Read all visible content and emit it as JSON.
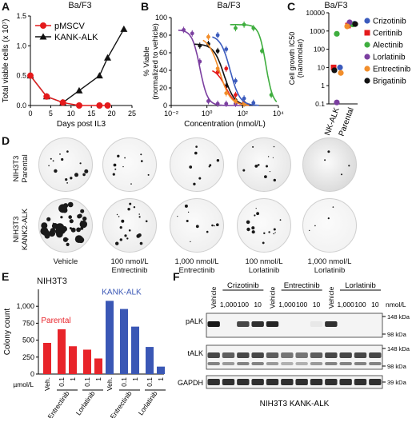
{
  "panel_letters": {
    "a": "A",
    "b": "B",
    "c": "C",
    "d": "D",
    "e": "E",
    "f": "F"
  },
  "titles": {
    "a": "Ba/F3",
    "b": "Ba/F3",
    "c": "Ba/F3",
    "e": "NIH3T3"
  },
  "panel_d": {
    "row_labels": [
      "NIH3T3 Parental",
      "NIH3T3 KANK2-ALK"
    ],
    "column_captions": [
      "Vehicle",
      "100 nmol/L\nEntrectinib",
      "1,000 nmol/L\nEntrectinib",
      "100 nmol/L\nLorlatinib",
      "1,000 nmol/L\nLorlatinib"
    ],
    "dish_tones": [
      [
        "#ececec",
        "#f0f0f0",
        "#eeeeee",
        "#e6e6e6",
        "#d8d8d8"
      ],
      [
        "#e9e9e9",
        "#ebebeb",
        "#eeeeee",
        "#f0f0f0",
        "#f2f2f2"
      ]
    ]
  },
  "panel_f": {
    "groups": [
      "Crizotinib",
      "Entrectinib",
      "Lorlatinib"
    ],
    "lane_labels": [
      "Vehicle",
      "1,000",
      "100",
      "10",
      "Vehicle",
      "1,000",
      "100",
      "10",
      "Vehicle",
      "1,000",
      "100",
      "10"
    ],
    "unit": "nmol/L",
    "rows": [
      "pALK",
      "tALK",
      "GAPDH"
    ],
    "markers": {
      "palk": [
        "148 kDa",
        "98 kDa"
      ],
      "talk": [
        "148 kDa",
        "98 kDa"
      ],
      "gapdh": [
        "39 kDa"
      ]
    },
    "band_intensity": {
      "pALK": [
        1,
        0.05,
        0.8,
        0.9,
        0.95,
        0.05,
        0.05,
        0.1,
        0.9,
        0.05,
        0.05,
        0.05
      ],
      "tALK": [
        0.8,
        0.7,
        0.8,
        0.8,
        0.7,
        0.6,
        0.6,
        0.7,
        0.8,
        0.8,
        0.8,
        0.8
      ],
      "GAPDH": [
        0.9,
        0.9,
        0.9,
        0.9,
        0.9,
        0.9,
        0.9,
        0.9,
        0.9,
        0.9,
        0.9,
        0.9
      ]
    },
    "caption": "NIH3T3 KANK-ALK"
  },
  "colors": {
    "red": "#e41a1c",
    "blue": "#2e4c9e",
    "green": "#3fae3f",
    "purple": "#7b3fa0",
    "orange": "#f28e2b",
    "black": "#111111",
    "crizotinib": "#3b5bbd",
    "ceritinib": "#e41a1c",
    "alectinib": "#3fae3f",
    "lorlatinib": "#7b3fa0",
    "entrectinib": "#f28e2b",
    "brigatinib": "#111111",
    "bar_red": "#e8242a",
    "bar_blue": "#3a57b5"
  },
  "chart_data": [
    {
      "id": "a",
      "type": "line",
      "title": "Ba/F3",
      "xlabel": "Days post IL3",
      "ylabel": "Total viable cells (x 10⁷)",
      "xlim": [
        0,
        25
      ],
      "ylim": [
        0,
        1.5
      ],
      "xticks": [
        0,
        5,
        10,
        15,
        20,
        25
      ],
      "yticks": [
        0.0,
        0.5,
        1.0,
        1.5
      ],
      "ytick_labels": [
        "0.0",
        "0.5",
        "1.0",
        "1.5"
      ],
      "legend_position": "top-left",
      "series": [
        {
          "name": "pMSCV",
          "marker": "circle",
          "color": "#e41a1c",
          "x": [
            0,
            4,
            8,
            12,
            17,
            19
          ],
          "y": [
            0.5,
            0.15,
            0.05,
            0.0,
            0.0,
            0.0
          ]
        },
        {
          "name": "KANK-ALK",
          "marker": "triangle",
          "color": "#111111",
          "x": [
            0,
            4,
            8,
            12,
            17,
            19,
            23
          ],
          "y": [
            0.5,
            0.15,
            0.05,
            0.25,
            0.5,
            0.8,
            1.28
          ]
        }
      ]
    },
    {
      "id": "b",
      "type": "line",
      "title": "Ba/F3",
      "xlabel": "Concentration (nmol/L)",
      "ylabel": "% Viable (normalized to vehicle)",
      "xscale": "log",
      "xlim": [
        0.01,
        10000
      ],
      "ylim": [
        0,
        100
      ],
      "xticks": [
        0.01,
        1,
        100,
        10000
      ],
      "xtick_labels": [
        "10⁻²",
        "10⁰",
        "10²",
        "10⁴"
      ],
      "yticks": [
        0,
        20,
        40,
        60,
        80,
        100
      ],
      "ytick_labels": [
        "0",
        "20",
        "40",
        "60",
        "80",
        "100"
      ],
      "series": [
        {
          "name": "Lorlatinib",
          "color": "#7b3fa0",
          "ic50": 0.4,
          "hill": 2.0,
          "x": [
            0.05,
            0.15,
            0.4,
            1.2,
            4,
            12,
            40
          ],
          "y": [
            86,
            82,
            50,
            5,
            2,
            2,
            2
          ]
        },
        {
          "name": "Brigatinib",
          "color": "#111111",
          "ic50": 9,
          "hill": 1.5,
          "x": [
            0.4,
            1.2,
            4,
            12,
            40,
            120
          ],
          "y": [
            68,
            70,
            62,
            22,
            6,
            3
          ]
        },
        {
          "name": "Ceritinib",
          "color": "#e41a1c",
          "ic50": 11,
          "hill": 1.6,
          "x": [
            4,
            12,
            40,
            120
          ],
          "y": [
            38,
            42,
            12,
            3
          ]
        },
        {
          "name": "Entrectinib",
          "color": "#f28e2b",
          "ic50": 5,
          "hill": 1.4,
          "x": [
            1.2,
            4,
            12,
            40,
            120
          ],
          "y": [
            78,
            42,
            14,
            5,
            2
          ]
        },
        {
          "name": "Crizotinib",
          "color": "#3b5bbd",
          "ic50": 20,
          "hill": 1.6,
          "x": [
            4,
            12,
            40,
            120,
            400
          ],
          "y": [
            80,
            64,
            28,
            8,
            3
          ]
        },
        {
          "name": "Alectinib",
          "color": "#3fae3f",
          "ic50": 2000,
          "hill": 2.2,
          "x": [
            40,
            120,
            400,
            1200,
            4000
          ],
          "y": [
            88,
            92,
            88,
            62,
            12
          ]
        }
      ]
    },
    {
      "id": "c",
      "type": "scatter",
      "title": "Ba/F3",
      "ylabel": "Cell growth IC50 (nanomolar)",
      "yscale": "log",
      "ylim": [
        0.1,
        10000
      ],
      "yticks": [
        0.1,
        1,
        10,
        100,
        1000,
        10000
      ],
      "ytick_labels": [
        "0.1",
        "1",
        "10",
        "100",
        "1000",
        "10000"
      ],
      "categories": [
        "KANK-ALK",
        "Parental"
      ],
      "legend_position": "right",
      "series": [
        {
          "name": "Crizotinib",
          "color": "#3b5bbd",
          "values": [
            10,
            2500
          ]
        },
        {
          "name": "Ceritinib",
          "color": "#e41a1c",
          "values": [
            10,
            2000
          ]
        },
        {
          "name": "Alectinib",
          "color": "#3fae3f",
          "values": [
            700,
            2300
          ]
        },
        {
          "name": "Lorlatinib",
          "color": "#7b3fa0",
          "values": [
            0.12,
            3000
          ]
        },
        {
          "name": "Entrectinib",
          "color": "#f28e2b",
          "values": [
            5,
            1800
          ]
        },
        {
          "name": "Brigatinib",
          "color": "#111111",
          "values": [
            7,
            2400
          ]
        }
      ]
    },
    {
      "id": "e",
      "type": "bar",
      "title": "NIH3T3",
      "ylabel": "Colony count",
      "ylim": [
        0,
        1250
      ],
      "yticks": [
        0,
        250,
        500,
        750,
        1000
      ],
      "ytick_labels": [
        "0",
        "250",
        "500",
        "750",
        "1,000"
      ],
      "unit_label": "µmol/L",
      "group_labels": [
        "Parental",
        "KANK-ALK"
      ],
      "group_colors": [
        "#e8242a",
        "#3a57b5"
      ],
      "bar_labels": [
        "Veh.",
        "0.1",
        "1",
        "0.1",
        "1",
        "Veh.",
        "0.1",
        "1",
        "0.1",
        "1"
      ],
      "drug_labels": [
        "Entrectinib",
        "Lorlatinib",
        "Entrectinib",
        "Lorlatinib"
      ],
      "series": [
        {
          "name": "Parental",
          "values": [
            460,
            660,
            410,
            360,
            230
          ]
        },
        {
          "name": "KANK-ALK",
          "values": [
            1080,
            960,
            700,
            400,
            110
          ]
        }
      ]
    }
  ]
}
